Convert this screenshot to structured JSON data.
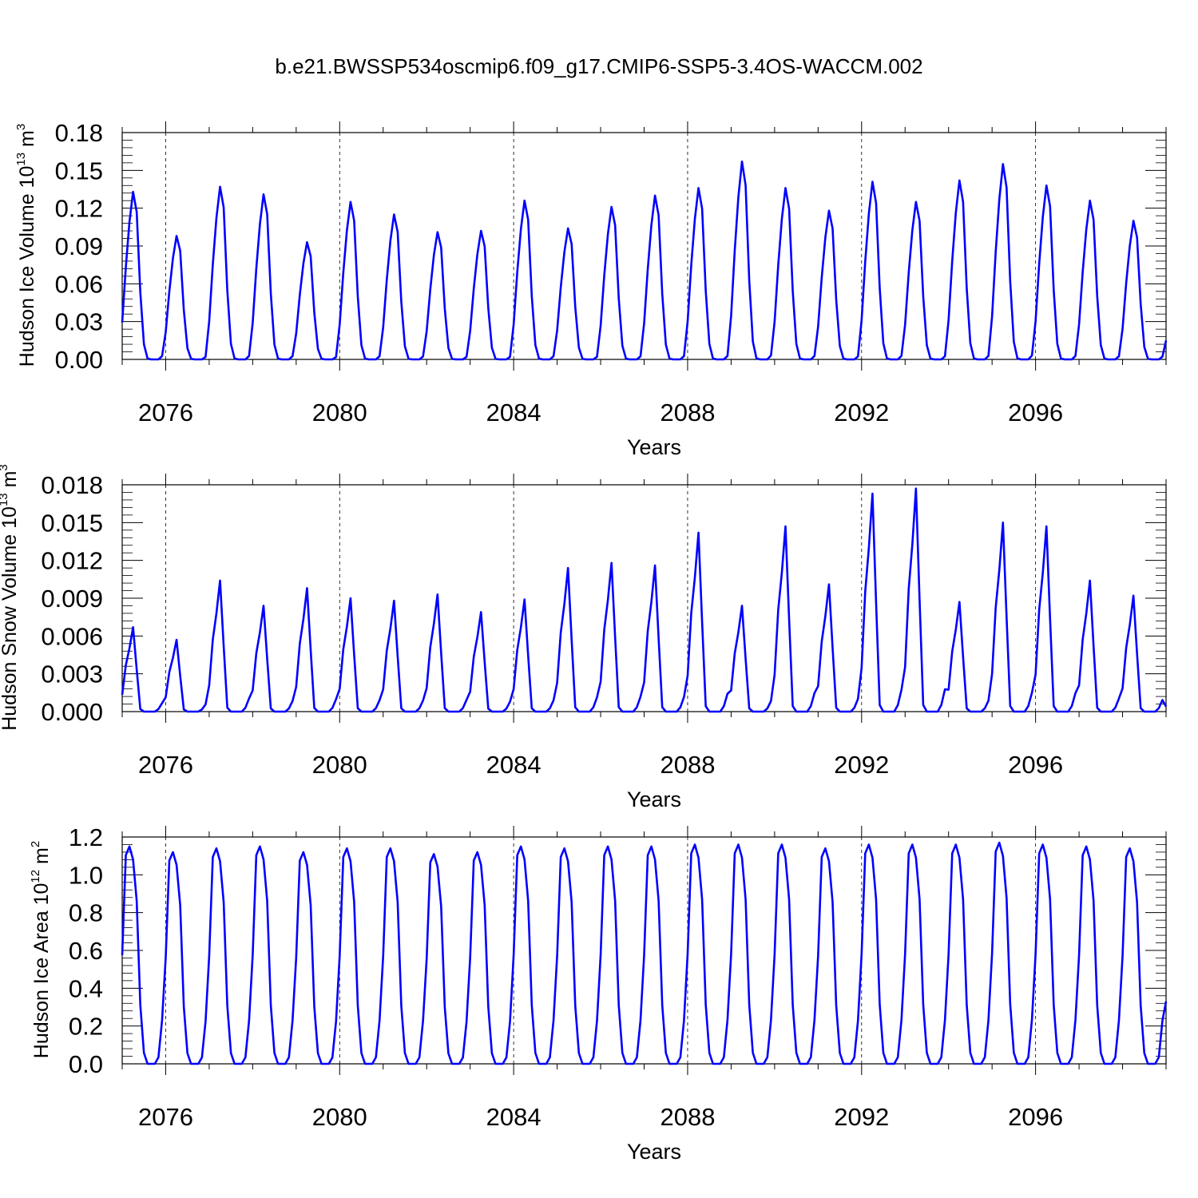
{
  "figure_title": "b.e21.BWSSP534oscmip6.f09_g17.CMIP6-SSP5-3.4OS-WACCM.002",
  "colors": {
    "series": "#0000ff",
    "axes": "#000000",
    "grid": "#000000"
  },
  "panels": [
    {
      "ylabel": {
        "prefix": "Hudson Ice Volume 10",
        "exp": "13",
        "unit": " m",
        "unit_exp": "3"
      },
      "xlabel": "Years",
      "yticks": [
        "0.00",
        "0.03",
        "0.06",
        "0.09",
        "0.12",
        "0.15",
        "0.18"
      ],
      "xticks": [
        "2076",
        "2080",
        "2084",
        "2088",
        "2092",
        "2096"
      ]
    },
    {
      "ylabel": {
        "prefix": "Hudson Snow Volume 10",
        "exp": "13",
        "unit": " m",
        "unit_exp": "3"
      },
      "xlabel": "Years",
      "yticks": [
        "0.000",
        "0.003",
        "0.006",
        "0.009",
        "0.012",
        "0.015",
        "0.018"
      ],
      "xticks": [
        "2076",
        "2080",
        "2084",
        "2088",
        "2092",
        "2096"
      ]
    },
    {
      "ylabel": {
        "prefix": "Hudson Ice Area 10",
        "exp": "12",
        "unit": " m",
        "unit_exp": "2"
      },
      "xlabel": "Years",
      "yticks": [
        "0.0",
        "0.2",
        "0.4",
        "0.6",
        "0.8",
        "1.0",
        "1.2"
      ],
      "xticks": [
        "2076",
        "2080",
        "2084",
        "2088",
        "2092",
        "2096"
      ]
    }
  ],
  "chart_data": [
    {
      "type": "line",
      "title": "b.e21.BWSSP534oscmip6.f09_g17.CMIP6-SSP5-3.4OS-WACCM.002",
      "xlabel": "Years",
      "ylabel": "Hudson Ice Volume 10^13 m^3",
      "xlim": [
        2075.0,
        2099.0
      ],
      "ylim": [
        0.0,
        0.18
      ],
      "series_name": "Hudson Ice Volume",
      "start_year": 2075.0,
      "step_years": 0.0833333,
      "annual_peaks": [
        0.133,
        0.098,
        0.137,
        0.131,
        0.093,
        0.125,
        0.115,
        0.101,
        0.102,
        0.126,
        0.104,
        0.121,
        0.13,
        0.136,
        0.157,
        0.136,
        0.118,
        0.141,
        0.125,
        0.142,
        0.155,
        0.138,
        0.126,
        0.11
      ],
      "monthly_shape": [
        0.22,
        0.55,
        0.82,
        1.0,
        0.88,
        0.4,
        0.09,
        0.005,
        0.0,
        0.0,
        0.0,
        0.02
      ],
      "final_value": 0.015
    },
    {
      "type": "line",
      "xlabel": "Years",
      "ylabel": "Hudson Snow Volume 10^13 m^3",
      "xlim": [
        2075.0,
        2099.0
      ],
      "ylim": [
        0.0,
        0.018
      ],
      "series_name": "Hudson Snow Volume",
      "start_year": 2075.0,
      "step_years": 0.0833333,
      "annual_peaks": [
        0.0067,
        0.0057,
        0.0104,
        0.0084,
        0.0098,
        0.009,
        0.0088,
        0.0093,
        0.0079,
        0.0089,
        0.0114,
        0.0118,
        0.0116,
        0.0142,
        0.0084,
        0.0147,
        0.0101,
        0.0173,
        0.0177,
        0.0087,
        0.015,
        0.0147,
        0.0104,
        0.0092
      ],
      "monthly_shape": [
        0.2,
        0.55,
        0.75,
        1.0,
        0.5,
        0.03,
        0.0,
        0.0,
        0.0,
        0.0,
        0.03,
        0.1
      ],
      "final_value": 0.0004
    },
    {
      "type": "line",
      "xlabel": "Years",
      "ylabel": "Hudson Ice Area 10^12 m^2",
      "xlim": [
        2075.0,
        2099.0
      ],
      "ylim": [
        0.0,
        1.2
      ],
      "series_name": "Hudson Ice Area",
      "start_year": 2075.0,
      "step_years": 0.0833333,
      "annual_peaks": [
        1.15,
        1.12,
        1.14,
        1.15,
        1.12,
        1.14,
        1.14,
        1.11,
        1.12,
        1.15,
        1.14,
        1.15,
        1.15,
        1.16,
        1.16,
        1.16,
        1.14,
        1.16,
        1.16,
        1.16,
        1.17,
        1.16,
        1.15,
        1.14
      ],
      "monthly_shape": [
        0.5,
        0.96,
        1.0,
        0.94,
        0.75,
        0.27,
        0.05,
        0.0,
        0.0,
        0.0,
        0.03,
        0.2
      ],
      "final_value": 0.33
    }
  ]
}
